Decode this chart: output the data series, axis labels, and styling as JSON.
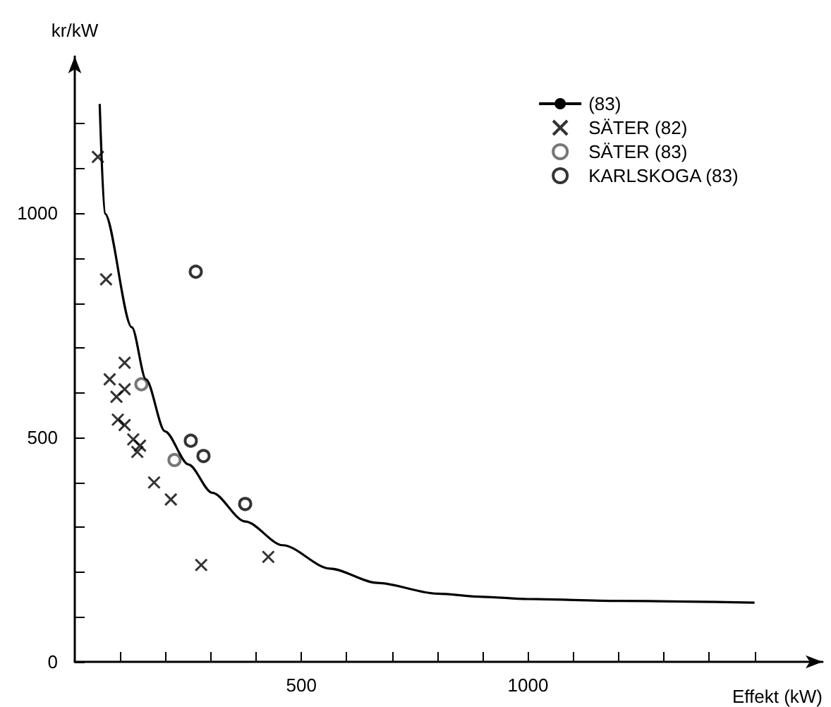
{
  "chart_data": {
    "type": "scatter",
    "xlabel": "Effekt (kW)",
    "ylabel": "kr/kW",
    "xlim": [
      0,
      1650
    ],
    "ylim": [
      0,
      1350
    ],
    "xticks": [
      {
        "value": 100,
        "label": null
      },
      {
        "value": 200,
        "label": null
      },
      {
        "value": 300,
        "label": null
      },
      {
        "value": 400,
        "label": null
      },
      500,
      {
        "value": 600,
        "label": null
      },
      {
        "value": 700,
        "label": null
      },
      {
        "value": 800,
        "label": null
      },
      {
        "value": 900,
        "label": null
      },
      1000,
      {
        "value": 1100,
        "label": null
      },
      {
        "value": 1200,
        "label": null
      },
      {
        "value": 1300,
        "label": null
      },
      {
        "value": 1400,
        "label": null
      },
      {
        "value": 1500,
        "label": null
      }
    ],
    "yticks": [
      0,
      {
        "value": 100,
        "label": null
      },
      {
        "value": 200,
        "label": null
      },
      {
        "value": 300,
        "label": null
      },
      {
        "value": 400,
        "label": null
      },
      500,
      {
        "value": 600,
        "label": null
      },
      {
        "value": 700,
        "label": null
      },
      {
        "value": 800,
        "label": null
      },
      {
        "value": 900,
        "label": null
      },
      1000,
      {
        "value": 1100,
        "label": null
      },
      {
        "value": 1200,
        "label": null
      }
    ],
    "legend": "top right",
    "grid": false,
    "series": [
      {
        "name": "(83)",
        "type": "line",
        "marker": "none",
        "color": "#000000",
        "x": [
          55,
          66,
          126,
          157,
          199,
          251,
          303,
          376,
          459,
          563,
          668,
          800,
          900,
          1000,
          1200,
          1500
        ],
        "values": [
          1244,
          1000,
          746,
          630,
          514,
          440,
          377,
          313,
          260,
          208,
          176,
          152,
          145,
          140,
          136,
          132
        ]
      },
      {
        "name": "SÄTER (82)",
        "marker": "cross",
        "color": "#000000",
        "x": [
          51,
          69,
          110,
          77,
          110,
          92,
          95,
          110,
          129,
          144,
          138,
          175,
          212,
          279,
          427
        ],
        "values": [
          1126,
          853,
          667,
          630,
          608,
          591,
          540,
          528,
          496,
          482,
          468,
          400,
          362,
          216,
          234
        ]
      },
      {
        "name": "SÄTER (83)",
        "marker": "circle",
        "color": "#555555",
        "x": [
          147,
          220
        ],
        "values": [
          619,
          450
        ]
      },
      {
        "name": "KARLSKOGA (83)",
        "marker": "circle",
        "color": "#000000",
        "x": [
          267,
          256,
          284,
          376
        ],
        "values": [
          870,
          493,
          459,
          352
        ]
      }
    ]
  }
}
